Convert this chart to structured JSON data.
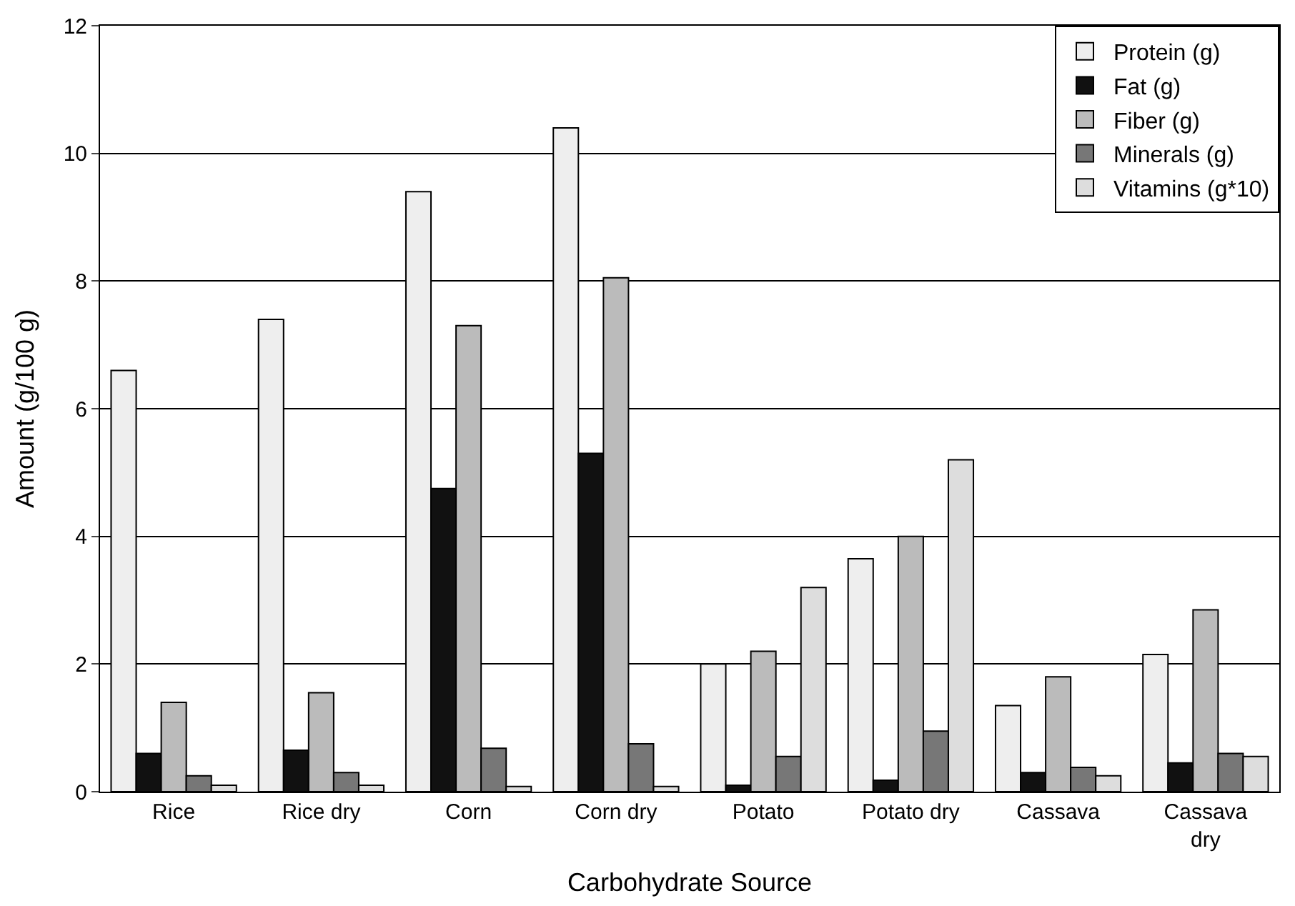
{
  "chart_data": {
    "type": "bar",
    "xlabel": "Carbohydrate Source",
    "ylabel": "Amount (g/100 g)",
    "categories": [
      "Rice",
      "Rice dry",
      "Corn",
      "Corn dry",
      "Potato",
      "Potato dry",
      "Cassava",
      "Cassava dry"
    ],
    "series": [
      {
        "name": "Protein (g)",
        "color": "#eeeeee",
        "values": [
          6.6,
          7.4,
          9.4,
          10.4,
          2.0,
          3.65,
          1.35,
          2.15
        ]
      },
      {
        "name": "Fat (g)",
        "color": "#111111",
        "values": [
          0.6,
          0.65,
          4.75,
          5.3,
          0.1,
          0.18,
          0.3,
          0.45
        ]
      },
      {
        "name": "Fiber (g)",
        "color": "#bbbbbb",
        "values": [
          1.4,
          1.55,
          7.3,
          8.05,
          2.2,
          4.0,
          1.8,
          2.85
        ]
      },
      {
        "name": "Minerals (g)",
        "color": "#777777",
        "values": [
          0.25,
          0.3,
          0.68,
          0.75,
          0.55,
          0.95,
          0.38,
          0.6
        ]
      },
      {
        "name": "Vitamins (g*10)",
        "color": "#dddddd",
        "values": [
          0.1,
          0.1,
          0.08,
          0.08,
          3.2,
          5.2,
          0.25,
          0.55
        ]
      }
    ],
    "ylim": [
      0,
      12
    ],
    "yticks": [
      0,
      2,
      4,
      6,
      8,
      10,
      12
    ],
    "grid": "y",
    "legend": "top right"
  }
}
